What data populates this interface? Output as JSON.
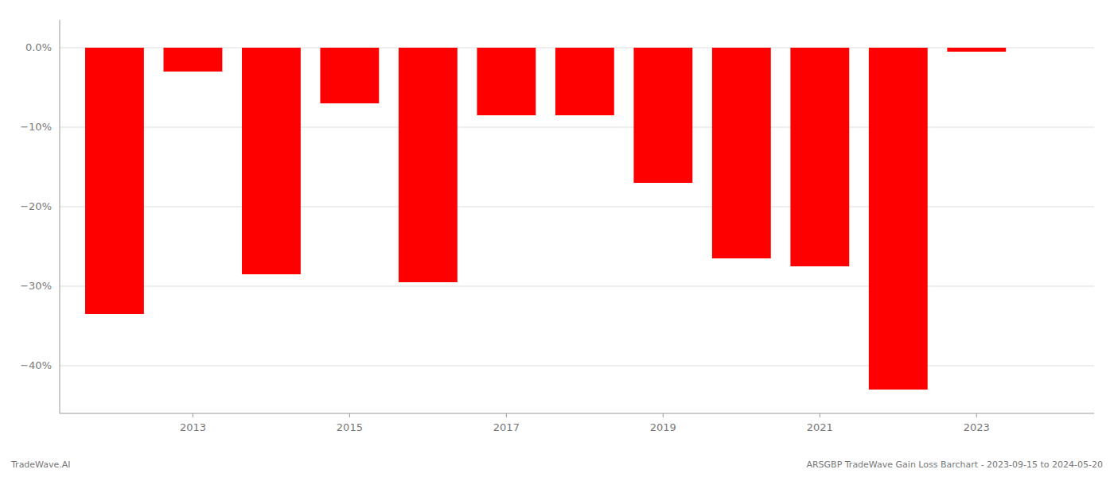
{
  "chart_data": {
    "type": "bar",
    "x": [
      2012,
      2013,
      2014,
      2015,
      2016,
      2017,
      2018,
      2019,
      2020,
      2021,
      2022,
      2023
    ],
    "values": [
      -33.5,
      -3.0,
      -28.5,
      -7.0,
      -29.5,
      -8.5,
      -8.5,
      -17.0,
      -26.5,
      -27.5,
      -43.0,
      -0.5
    ],
    "color": "#ff0000",
    "xlim": [
      2011.3,
      2024.5
    ],
    "xticks": [
      2013,
      2015,
      2017,
      2019,
      2021,
      2023
    ],
    "ylim": [
      -46,
      3.5
    ],
    "yticks": [
      {
        "value": 0.0,
        "label": "0.0%"
      },
      {
        "value": -10.0,
        "label": "−10%"
      },
      {
        "value": -20.0,
        "label": "−20%"
      },
      {
        "value": -30.0,
        "label": "−30%"
      },
      {
        "value": -40.0,
        "label": "−40%"
      }
    ],
    "grid": true,
    "annotations": [
      "TradeWave.AI",
      "ARSGBP TradeWave Gain Loss Barchart - 2023-09-15 to 2024-05-20"
    ]
  }
}
